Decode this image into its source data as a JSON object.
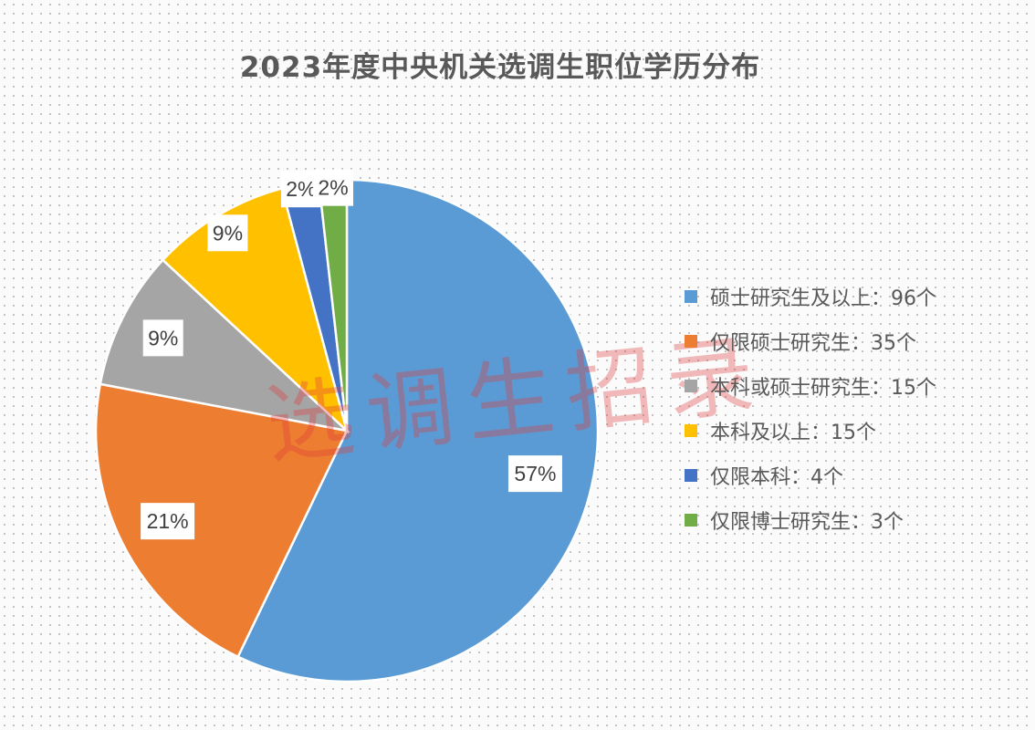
{
  "chart_data": {
    "type": "pie",
    "title": "2023年度中央机关选调生职位学历分布",
    "categories": [
      "硕士研究生及以上",
      "仅限硕士研究生",
      "本科或硕士研究生",
      "本科及以上",
      "仅限本科",
      "仅限博士研究生"
    ],
    "values": [
      96,
      35,
      15,
      15,
      4,
      3
    ],
    "data_labels": [
      "57%",
      "21%",
      "9%",
      "9%",
      "2%",
      "2%"
    ],
    "legend_labels": [
      "硕士研究生及以上：96个",
      "仅限硕士研究生：35个",
      "本科或硕士研究生：15个",
      "本科及以上：15个",
      "仅限本科：4个",
      "仅限博士研究生：3个"
    ],
    "colors": [
      "#5b9bd5",
      "#ed7d31",
      "#a5a5a5",
      "#ffc000",
      "#4472c4",
      "#70ad47"
    ],
    "legend_position": "right",
    "start_angle": "top, clockwise"
  },
  "watermark": "选调生招录"
}
